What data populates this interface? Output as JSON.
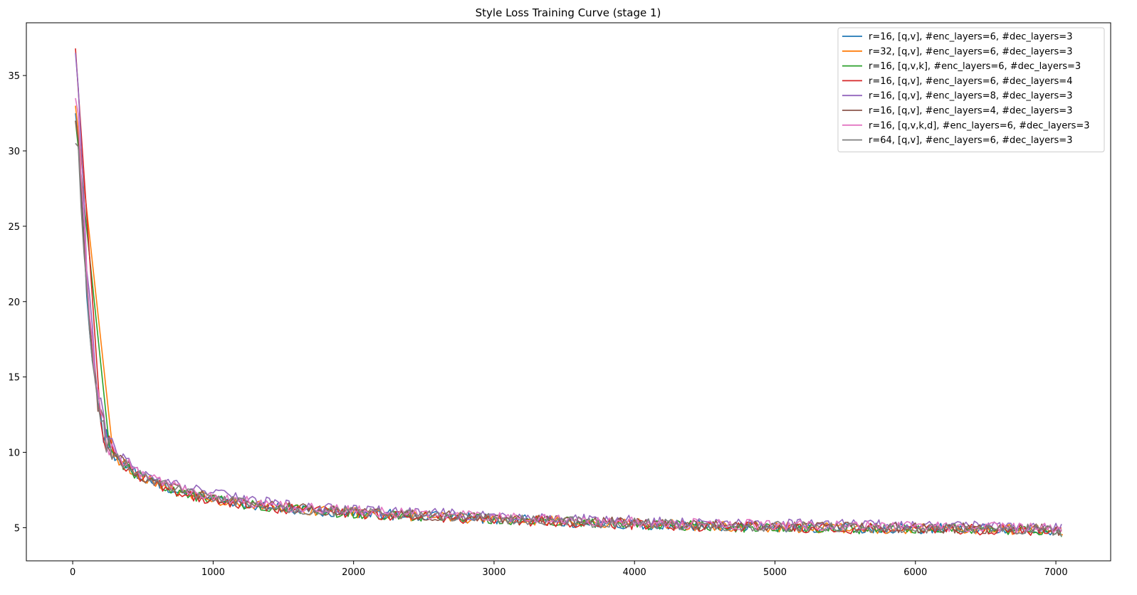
{
  "chart_data": {
    "type": "line",
    "title": "Style Loss Training Curve (stage 1)",
    "xlabel": "",
    "ylabel": "",
    "xlim": [
      -330,
      7390
    ],
    "ylim": [
      2.8,
      38.5
    ],
    "xticks": [
      0,
      1000,
      2000,
      3000,
      4000,
      5000,
      6000,
      7000
    ],
    "yticks": [
      5,
      10,
      15,
      20,
      25,
      30,
      35
    ],
    "grid": false,
    "legend_position": "top-right",
    "noise_amplitude": 0.22,
    "base": {
      "x": [
        20,
        60,
        100,
        140,
        180,
        220,
        260,
        300,
        350,
        400,
        450,
        500,
        600,
        700,
        800,
        900,
        1000,
        1200,
        1400,
        1600,
        1800,
        2000,
        2200,
        2400,
        2600,
        2800,
        3000,
        3200,
        3400,
        3600,
        3800,
        4000,
        4200,
        4400,
        4600,
        4800,
        5000,
        5200,
        5400,
        5600,
        5800,
        6000,
        6200,
        6400,
        6600,
        6800,
        7000,
        7050
      ],
      "y": [
        35.5,
        20,
        15,
        13.5,
        12,
        11,
        10.4,
        9.8,
        9.3,
        9,
        8.6,
        8.3,
        7.9,
        7.6,
        7.3,
        7.1,
        6.9,
        6.6,
        6.4,
        6.2,
        6.1,
        6,
        5.9,
        5.8,
        5.75,
        5.65,
        5.6,
        5.5,
        5.45,
        5.35,
        5.3,
        5.25,
        5.2,
        5.15,
        5.1,
        5.08,
        5.05,
        5.02,
        5,
        4.98,
        4.95,
        4.95,
        4.93,
        4.9,
        4.88,
        4.85,
        4.82,
        4.7
      ]
    },
    "series": [
      {
        "name": "r=16, [q,v], #enc_layers=6, #dec_layers=3",
        "color": "#1f77b4",
        "start_y": 32.5,
        "delay": 0,
        "offset": 0.0,
        "seed": 1
      },
      {
        "name": "r=32, [q,v], #enc_layers=6, #dec_layers=3",
        "color": "#ff7f0e",
        "start_y": 33.0,
        "delay": 250,
        "offset": 0.0,
        "seed": 2
      },
      {
        "name": "r=16, [q,v,k], #enc_layers=6, #dec_layers=3",
        "color": "#2ca02c",
        "start_y": 32.0,
        "delay": 220,
        "offset": -0.05,
        "seed": 3
      },
      {
        "name": "r=16, [q,v], #enc_layers=6, #dec_layers=4",
        "color": "#d62728",
        "start_y": 36.8,
        "delay": 160,
        "offset": -0.05,
        "seed": 4
      },
      {
        "name": "r=16, [q,v], #enc_layers=8, #dec_layers=3",
        "color": "#9467bd",
        "start_y": 36.5,
        "delay": 0,
        "offset": 0.35,
        "seed": 5
      },
      {
        "name": "r=16, [q,v], #enc_layers=4, #dec_layers=3",
        "color": "#8c564b",
        "start_y": 32.0,
        "delay": 0,
        "offset": 0.1,
        "seed": 6
      },
      {
        "name": "r=16, [q,v,k,d], #enc_layers=6, #dec_layers=3",
        "color": "#e377c2",
        "start_y": 33.5,
        "delay": 0,
        "offset": 0.2,
        "seed": 7
      },
      {
        "name": "r=64, [q,v], #enc_layers=6, #dec_layers=3",
        "color": "#7f7f7f",
        "start_y": 30.5,
        "delay": 0,
        "offset": 0.05,
        "seed": 8
      }
    ]
  }
}
